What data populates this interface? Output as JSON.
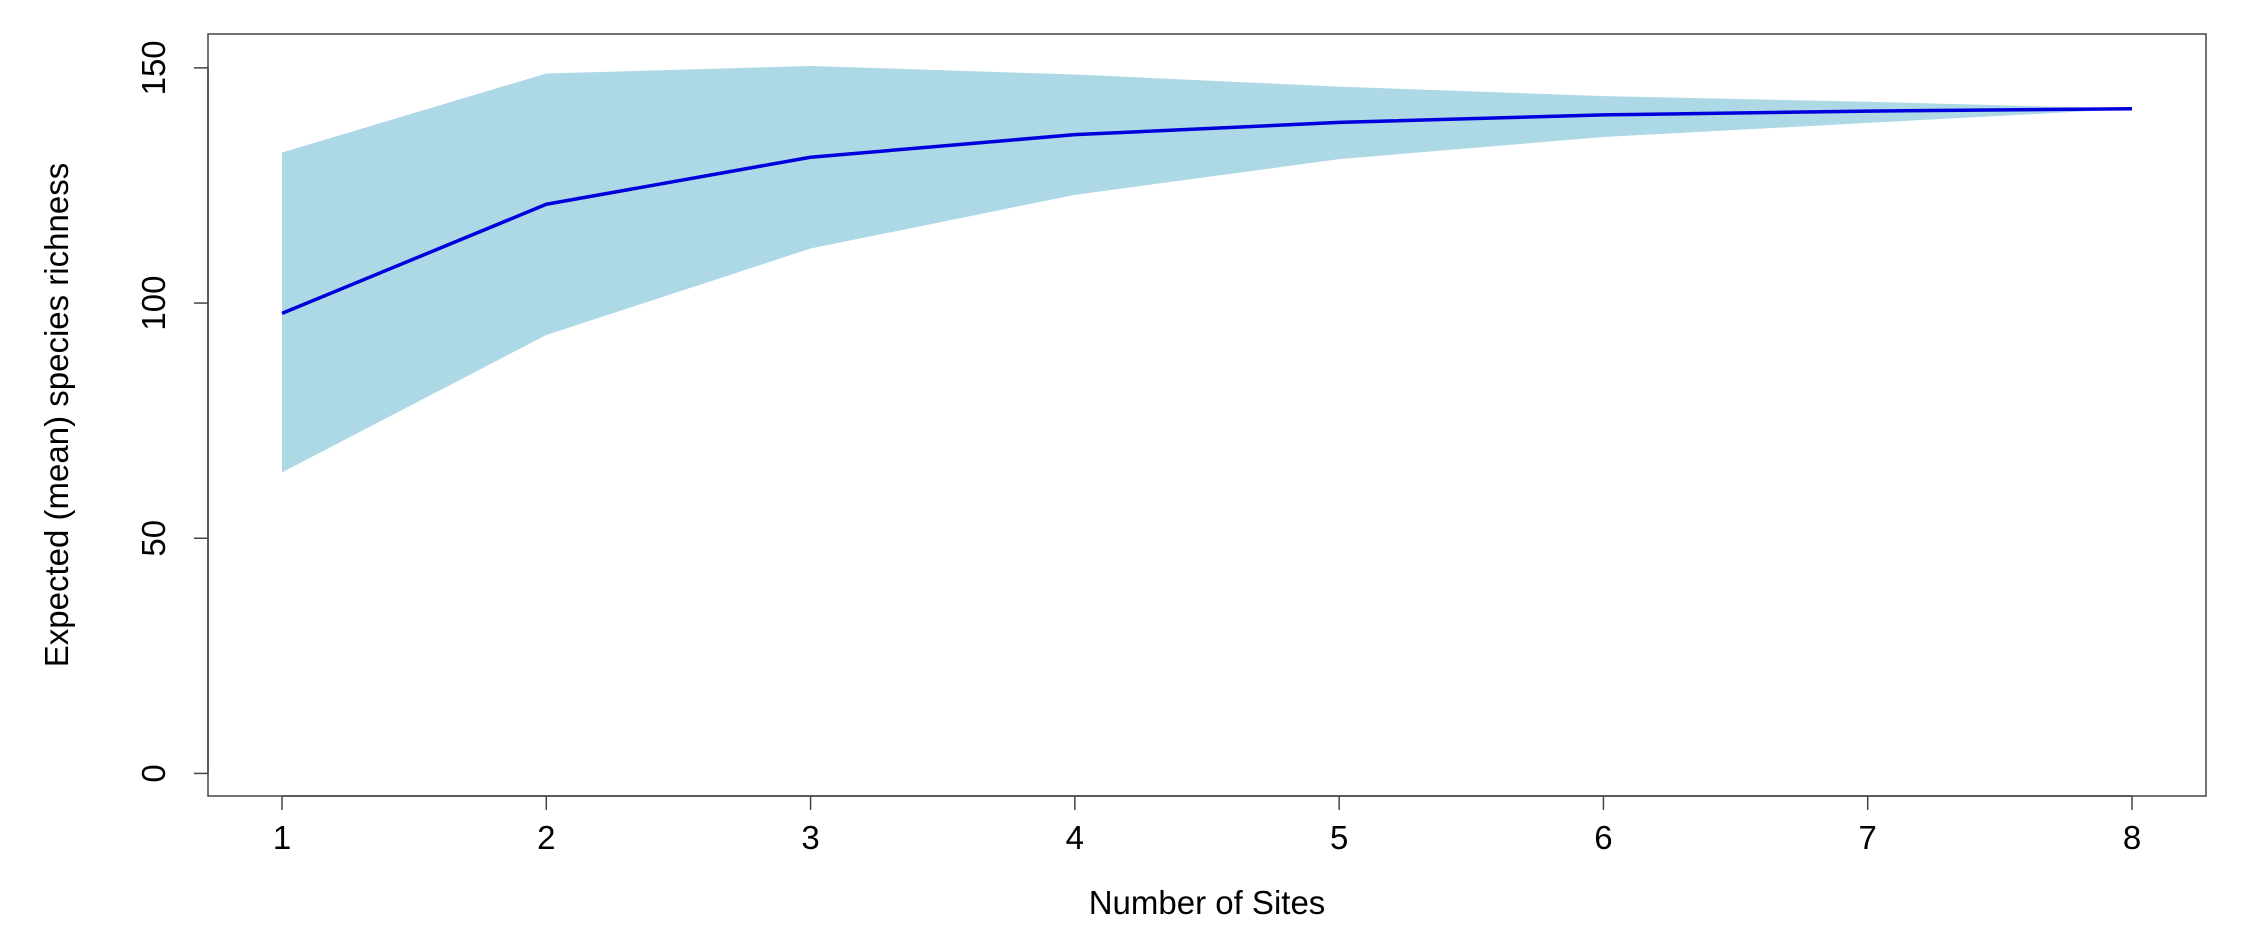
{
  "chart_data": {
    "type": "area",
    "title": "",
    "xlabel": "Number of Sites",
    "ylabel": "Expected (mean) species richness",
    "x": [
      1,
      2,
      3,
      4,
      5,
      6,
      7,
      8
    ],
    "xlim": [
      0.72,
      8.28
    ],
    "ylim": [
      -4.8,
      157.2
    ],
    "x_ticks": [
      1,
      2,
      3,
      4,
      5,
      6,
      7,
      8
    ],
    "y_ticks": [
      0,
      50,
      100,
      150
    ],
    "grid": false,
    "legend": "none",
    "series": [
      {
        "type": "line",
        "values": [
          97.8,
          121.0,
          131.0,
          135.8,
          138.4,
          140.0,
          140.8,
          141.3
        ],
        "color": "#0000dd"
      },
      {
        "type": "band",
        "lower": [
          64.0,
          93.2,
          111.6,
          123.0,
          130.6,
          135.3,
          138.3,
          141.3
        ],
        "upper": [
          132.0,
          148.8,
          150.4,
          148.6,
          146.0,
          144.0,
          142.8,
          141.3
        ],
        "color": "#add8e6"
      }
    ]
  }
}
